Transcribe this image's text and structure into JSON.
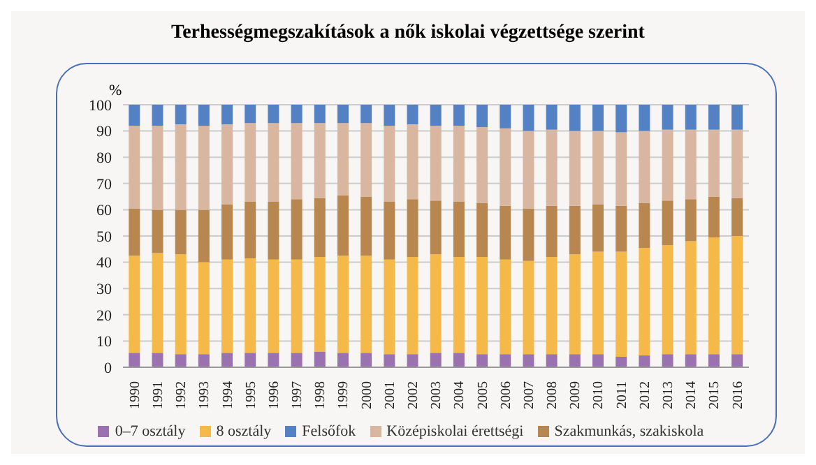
{
  "chart_data": {
    "type": "bar",
    "title": "Terhességmegszakítások a nők iskolai végzettsége szerint",
    "ylabel": "%",
    "stacked": true,
    "categories": [
      "1990",
      "1991",
      "1992",
      "1993",
      "1994",
      "1995",
      "1996",
      "1997",
      "1998",
      "1999",
      "2000",
      "2001",
      "2002",
      "2003",
      "2004",
      "2005",
      "2006",
      "2007",
      "2008",
      "2009",
      "2010",
      "2011",
      "2012",
      "2013",
      "2014",
      "2015",
      "2016"
    ],
    "series": [
      {
        "name": "0–7 osztály",
        "color": "#9b72b0",
        "values": [
          5.5,
          5.5,
          5,
          5,
          5.5,
          5.5,
          5.5,
          5.5,
          6,
          5.5,
          5.5,
          5,
          5,
          5.5,
          5.5,
          5,
          5,
          5,
          5,
          5,
          5,
          4,
          4.5,
          5,
          5,
          5,
          5
        ]
      },
      {
        "name": "8 osztály",
        "color": "#f5b94a",
        "values": [
          37,
          38,
          38,
          35,
          35.5,
          36,
          35.5,
          35.5,
          36,
          37,
          37,
          36,
          37,
          37.5,
          36.5,
          37,
          36,
          35.5,
          37,
          38,
          39,
          40,
          41,
          41.5,
          43,
          44.5,
          45
        ]
      },
      {
        "name": "Szakmunkás, szakiskola",
        "color": "#b8864f",
        "values": [
          18,
          16.5,
          17,
          20,
          21,
          21.5,
          22,
          23,
          22.5,
          23,
          22.5,
          22,
          22,
          20.5,
          21,
          20.5,
          20.5,
          20,
          19.5,
          18.5,
          18,
          17.5,
          17,
          17,
          16,
          15.5,
          14.5
        ]
      },
      {
        "name": "Középiskolai érettségi",
        "color": "#d8b6a0",
        "values": [
          31.5,
          32,
          32.5,
          32,
          30.5,
          30,
          30,
          29,
          28.5,
          27.5,
          28,
          29,
          28.5,
          28.5,
          29,
          29,
          29.5,
          29.5,
          29,
          28.5,
          28,
          28,
          27.5,
          27,
          26.5,
          25.5,
          26
        ]
      },
      {
        "name": "Felsőfok",
        "color": "#5480c4",
        "values": [
          8,
          8,
          7.5,
          8,
          7.5,
          7,
          7,
          7,
          7,
          7,
          7,
          8,
          7.5,
          8,
          8,
          8.5,
          9,
          10,
          9.5,
          10,
          10,
          10.5,
          10,
          9.5,
          9.5,
          9.5,
          9.5
        ]
      }
    ],
    "ylim": [
      0,
      100
    ],
    "yticks": [
      0,
      10,
      20,
      30,
      40,
      50,
      60,
      70,
      80,
      90,
      100
    ],
    "grid": "y",
    "legend": "bottom"
  }
}
